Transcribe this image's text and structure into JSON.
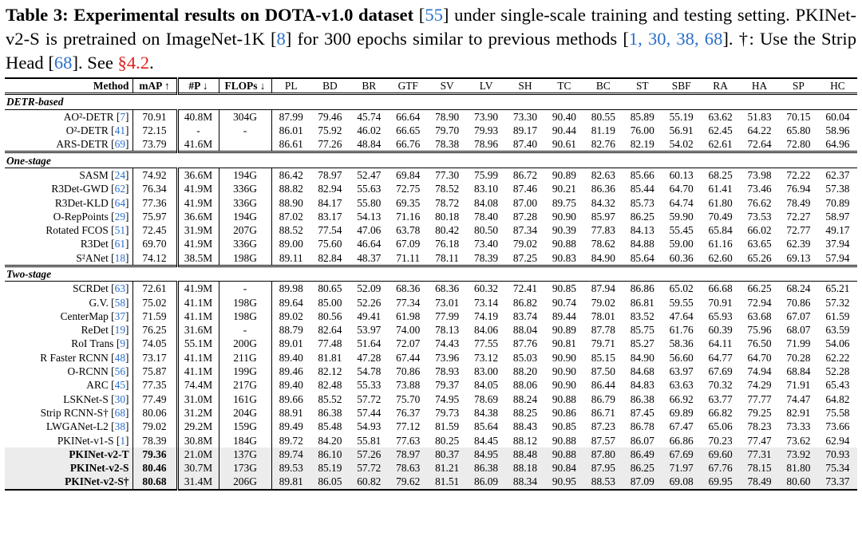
{
  "caption": [
    "Table 3: Experimental results on DOTA-v1.0 dataset",
    " [",
    "55",
    "] under single-scale training and testing setting. PKINet-v2-S is pretrained on ImageNet-1K [",
    "8",
    "] for 300 epochs similar to previous methods [",
    "1, 30, 38, 68",
    "]. †: Use the Strip Head [",
    "68",
    "]. See ",
    "§4.2",
    "."
  ],
  "table": {
    "header": [
      "Method",
      "mAP ↑",
      "#P ↓",
      "FLOPs ↓",
      "PL",
      "BD",
      "BR",
      "GTF",
      "SV",
      "LV",
      "SH",
      "TC",
      "BC",
      "ST",
      "SBF",
      "RA",
      "HA",
      "SP",
      "HC"
    ],
    "sections": [
      {
        "title": "DETR-based",
        "rows": [
          {
            "method": "AO²-DETR",
            "ref": "7",
            "map": "70.91",
            "params": "40.8M",
            "flops": "304G",
            "scores": [
              "87.99",
              "79.46",
              "45.74",
              "66.64",
              "78.90",
              "73.90",
              "73.30",
              "90.40",
              "80.55",
              "85.89",
              "55.19",
              "63.62",
              "51.83",
              "70.15",
              "60.04"
            ]
          },
          {
            "method": "O²-DETR",
            "ref": "41",
            "map": "72.15",
            "params": "-",
            "flops": "-",
            "scores": [
              "86.01",
              "75.92",
              "46.02",
              "66.65",
              "79.70",
              "79.93",
              "89.17",
              "90.44",
              "81.19",
              "76.00",
              "56.91",
              "62.45",
              "64.22",
              "65.80",
              "58.96"
            ]
          },
          {
            "method": "ARS-DETR",
            "ref": "69",
            "map": "73.79",
            "params": "41.6M",
            "flops": null,
            "scores": [
              "86.61",
              "77.26",
              "48.84",
              "66.76",
              "78.38",
              "78.96",
              "87.40",
              "90.61",
              "82.76",
              "82.19",
              "54.02",
              "62.61",
              "72.64",
              "72.80",
              "64.96"
            ]
          }
        ]
      },
      {
        "title": "One-stage",
        "rows": [
          {
            "method": "SASM",
            "ref": "24",
            "map": "74.92",
            "params": "36.6M",
            "flops": "194G",
            "scores": [
              "86.42",
              "78.97",
              "52.47",
              "69.84",
              "77.30",
              "75.99",
              "86.72",
              "90.89",
              "82.63",
              "85.66",
              "60.13",
              "68.25",
              "73.98",
              "72.22",
              "62.37"
            ]
          },
          {
            "method": "R3Det-GWD",
            "ref": "62",
            "map": "76.34",
            "params": "41.9M",
            "flops": "336G",
            "scores": [
              "88.82",
              "82.94",
              "55.63",
              "72.75",
              "78.52",
              "83.10",
              "87.46",
              "90.21",
              "86.36",
              "85.44",
              "64.70",
              "61.41",
              "73.46",
              "76.94",
              "57.38"
            ]
          },
          {
            "method": "R3Det-KLD",
            "ref": "64",
            "map": "77.36",
            "params": "41.9M",
            "flops": "336G",
            "scores": [
              "88.90",
              "84.17",
              "55.80",
              "69.35",
              "78.72",
              "84.08",
              "87.00",
              "89.75",
              "84.32",
              "85.73",
              "64.74",
              "61.80",
              "76.62",
              "78.49",
              "70.89"
            ]
          },
          {
            "method": "O-RepPoints",
            "ref": "29",
            "map": "75.97",
            "params": "36.6M",
            "flops": "194G",
            "scores": [
              "87.02",
              "83.17",
              "54.13",
              "71.16",
              "80.18",
              "78.40",
              "87.28",
              "90.90",
              "85.97",
              "86.25",
              "59.90",
              "70.49",
              "73.53",
              "72.27",
              "58.97"
            ]
          },
          {
            "method": "Rotated FCOS",
            "ref": "51",
            "map": "72.45",
            "params": "31.9M",
            "flops": "207G",
            "scores": [
              "88.52",
              "77.54",
              "47.06",
              "63.78",
              "80.42",
              "80.50",
              "87.34",
              "90.39",
              "77.83",
              "84.13",
              "55.45",
              "65.84",
              "66.02",
              "72.77",
              "49.17"
            ]
          },
          {
            "method": "R3Det",
            "ref": "61",
            "map": "69.70",
            "params": "41.9M",
            "flops": "336G",
            "scores": [
              "89.00",
              "75.60",
              "46.64",
              "67.09",
              "76.18",
              "73.40",
              "79.02",
              "90.88",
              "78.62",
              "84.88",
              "59.00",
              "61.16",
              "63.65",
              "62.39",
              "37.94"
            ]
          },
          {
            "method": "S²ANet",
            "ref": "18",
            "map": "74.12",
            "params": "38.5M",
            "flops": "198G",
            "scores": [
              "89.11",
              "82.84",
              "48.37",
              "71.11",
              "78.11",
              "78.39",
              "87.25",
              "90.83",
              "84.90",
              "85.64",
              "60.36",
              "62.60",
              "65.26",
              "69.13",
              "57.94"
            ]
          }
        ]
      },
      {
        "title": "Two-stage",
        "rows": [
          {
            "method": "SCRDet",
            "ref": "63",
            "map": "72.61",
            "params": "41.9M",
            "flops": "-",
            "scores": [
              "89.98",
              "80.65",
              "52.09",
              "68.36",
              "68.36",
              "60.32",
              "72.41",
              "90.85",
              "87.94",
              "86.86",
              "65.02",
              "66.68",
              "66.25",
              "68.24",
              "65.21"
            ]
          },
          {
            "method": "G.V.",
            "ref": "58",
            "map": "75.02",
            "params": "41.1M",
            "flops": "198G",
            "scores": [
              "89.64",
              "85.00",
              "52.26",
              "77.34",
              "73.01",
              "73.14",
              "86.82",
              "90.74",
              "79.02",
              "86.81",
              "59.55",
              "70.91",
              "72.94",
              "70.86",
              "57.32"
            ]
          },
          {
            "method": "CenterMap",
            "ref": "37",
            "map": "71.59",
            "params": "41.1M",
            "flops": "198G",
            "scores": [
              "89.02",
              "80.56",
              "49.41",
              "61.98",
              "77.99",
              "74.19",
              "83.74",
              "89.44",
              "78.01",
              "83.52",
              "47.64",
              "65.93",
              "63.68",
              "67.07",
              "61.59"
            ]
          },
          {
            "method": "ReDet",
            "ref": "19",
            "map": "76.25",
            "params": "31.6M",
            "flops": "-",
            "scores": [
              "88.79",
              "82.64",
              "53.97",
              "74.00",
              "78.13",
              "84.06",
              "88.04",
              "90.89",
              "87.78",
              "85.75",
              "61.76",
              "60.39",
              "75.96",
              "68.07",
              "63.59"
            ]
          },
          {
            "method": "RoI Trans",
            "ref": "9",
            "map": "74.05",
            "params": "55.1M",
            "flops": "200G",
            "scores": [
              "89.01",
              "77.48",
              "51.64",
              "72.07",
              "74.43",
              "77.55",
              "87.76",
              "90.81",
              "79.71",
              "85.27",
              "58.36",
              "64.11",
              "76.50",
              "71.99",
              "54.06"
            ]
          },
          {
            "method": "R Faster RCNN",
            "ref": "48",
            "map": "73.17",
            "params": "41.1M",
            "flops": "211G",
            "scores": [
              "89.40",
              "81.81",
              "47.28",
              "67.44",
              "73.96",
              "73.12",
              "85.03",
              "90.90",
              "85.15",
              "84.90",
              "56.60",
              "64.77",
              "64.70",
              "70.28",
              "62.22"
            ]
          },
          {
            "method": "O-RCNN",
            "ref": "56",
            "map": "75.87",
            "params": "41.1M",
            "flops": "199G",
            "scores": [
              "89.46",
              "82.12",
              "54.78",
              "70.86",
              "78.93",
              "83.00",
              "88.20",
              "90.90",
              "87.50",
              "84.68",
              "63.97",
              "67.69",
              "74.94",
              "68.84",
              "52.28"
            ]
          },
          {
            "method": "ARC",
            "ref": "45",
            "map": "77.35",
            "params": "74.4M",
            "flops": "217G",
            "scores": [
              "89.40",
              "82.48",
              "55.33",
              "73.88",
              "79.37",
              "84.05",
              "88.06",
              "90.90",
              "86.44",
              "84.83",
              "63.63",
              "70.32",
              "74.29",
              "71.91",
              "65.43"
            ]
          },
          {
            "method": "LSKNet-S",
            "ref": "30",
            "map": "77.49",
            "params": "31.0M",
            "flops": "161G",
            "scores": [
              "89.66",
              "85.52",
              "57.72",
              "75.70",
              "74.95",
              "78.69",
              "88.24",
              "90.88",
              "86.79",
              "86.38",
              "66.92",
              "63.77",
              "77.77",
              "74.47",
              "64.82"
            ]
          },
          {
            "method": "Strip RCNN-S†",
            "ref": "68",
            "map": "80.06",
            "params": "31.2M",
            "flops": "204G",
            "scores": [
              "88.91",
              "86.38",
              "57.44",
              "76.37",
              "79.73",
              "84.38",
              "88.25",
              "90.86",
              "86.71",
              "87.45",
              "69.89",
              "66.82",
              "79.25",
              "82.91",
              "75.58"
            ]
          },
          {
            "method": "LWGANet-L2",
            "ref": "38",
            "map": "79.02",
            "params": "29.2M",
            "flops": "159G",
            "scores": [
              "89.49",
              "85.48",
              "54.93",
              "77.12",
              "81.59",
              "85.64",
              "88.43",
              "90.85",
              "87.23",
              "86.78",
              "67.47",
              "65.06",
              "78.23",
              "73.33",
              "73.66"
            ]
          },
          {
            "method": "PKINet-v1-S",
            "ref": "1",
            "map": "78.39",
            "params": "30.8M",
            "flops": "184G",
            "scores": [
              "89.72",
              "84.20",
              "55.81",
              "77.63",
              "80.25",
              "84.45",
              "88.12",
              "90.88",
              "87.57",
              "86.07",
              "66.86",
              "70.23",
              "77.47",
              "73.62",
              "62.94"
            ]
          },
          {
            "method": "PKINet-v2-T",
            "ref": null,
            "map": "79.36",
            "params": "21.0M",
            "flops": "137G",
            "scores": [
              "89.74",
              "86.10",
              "57.26",
              "78.97",
              "80.37",
              "84.95",
              "88.48",
              "90.88",
              "87.80",
              "86.49",
              "67.69",
              "69.60",
              "77.31",
              "73.92",
              "70.93"
            ]
          },
          {
            "method": "PKINet-v2-S",
            "ref": null,
            "map": "80.46",
            "params": "30.7M",
            "flops": "173G",
            "scores": [
              "89.53",
              "85.19",
              "57.72",
              "78.63",
              "81.21",
              "86.38",
              "88.18",
              "90.84",
              "87.95",
              "86.25",
              "71.97",
              "67.76",
              "78.15",
              "81.80",
              "75.34"
            ]
          },
          {
            "method": "PKINet-v2-S†",
            "ref": null,
            "map": "80.68",
            "params": "31.4M",
            "flops": "206G",
            "scores": [
              "89.81",
              "86.05",
              "60.82",
              "79.62",
              "81.51",
              "86.09",
              "88.34",
              "90.95",
              "88.53",
              "87.09",
              "69.08",
              "69.95",
              "78.49",
              "80.60",
              "73.37"
            ]
          }
        ]
      }
    ]
  }
}
